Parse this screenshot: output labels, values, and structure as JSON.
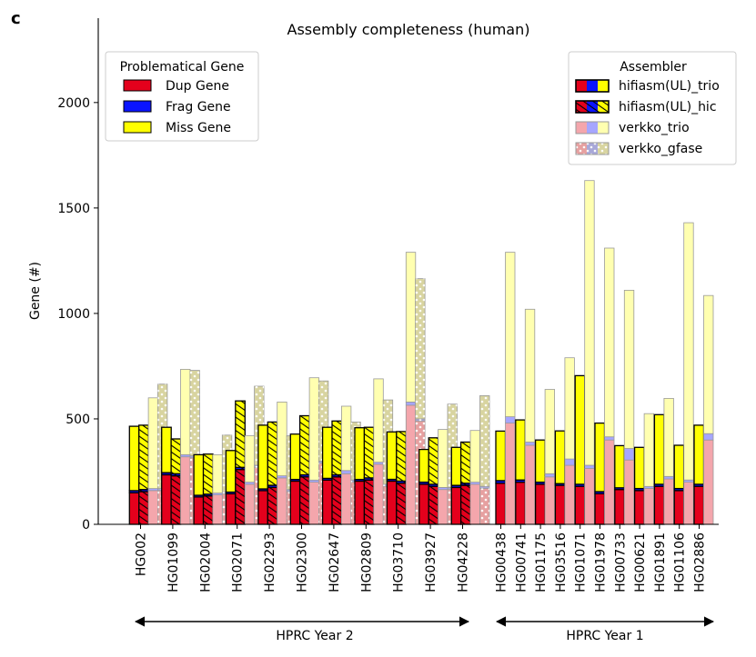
{
  "panel_label": "c",
  "chart_data": {
    "type": "stacked-bar",
    "title": "Assembly completeness (human)",
    "ylabel": "Gene (#)",
    "ylim": [
      0,
      2400
    ],
    "yticks": [
      0,
      500,
      1000,
      1500,
      2000
    ],
    "components": [
      "Dup Gene",
      "Frag Gene",
      "Miss Gene"
    ],
    "component_legend_title": "Problematical Gene",
    "assembler_legend_title": "Assembler",
    "assemblers": [
      "hifiasm(UL)_trio",
      "hifiasm(UL)_hic",
      "verkko_trio",
      "verkko_gfase"
    ],
    "groups": [
      {
        "label": "HPRC Year 2",
        "samples": [
          {
            "name": "HG002",
            "bars": [
              [
                150,
                10,
                305
              ],
              [
                155,
                10,
                305
              ],
              [
                160,
                10,
                430
              ],
              [
                160,
                10,
                495
              ]
            ]
          },
          {
            "name": "HG01099",
            "bars": [
              [
                235,
                10,
                215
              ],
              [
                230,
                10,
                165
              ],
              [
                320,
                10,
                405
              ],
              [
                315,
                10,
                405
              ]
            ]
          },
          {
            "name": "HG02004",
            "bars": [
              [
                130,
                8,
                192
              ],
              [
                135,
                8,
                190
              ],
              [
                140,
                8,
                182
              ],
              [
                145,
                8,
                270
              ]
            ]
          },
          {
            "name": "HG02071",
            "bars": [
              [
                145,
                8,
                197
              ],
              [
                260,
                10,
                315
              ],
              [
                190,
                10,
                220
              ],
              [
                270,
                10,
                375
              ]
            ]
          },
          {
            "name": "HG02293",
            "bars": [
              [
                160,
                8,
                302
              ],
              [
                175,
                10,
                300
              ],
              [
                220,
                10,
                350
              ],
              [
                155,
                10,
                255
              ]
            ]
          },
          {
            "name": "HG02300",
            "bars": [
              [
                205,
                8,
                215
              ],
              [
                225,
                10,
                280
              ],
              [
                200,
                10,
                485
              ],
              [
                290,
                10,
                380
              ]
            ]
          },
          {
            "name": "HG02647",
            "bars": [
              [
                210,
                8,
                242
              ],
              [
                225,
                10,
                255
              ],
              [
                240,
                15,
                305
              ],
              [
                200,
                10,
                275
              ]
            ]
          },
          {
            "name": "HG02809",
            "bars": [
              [
                205,
                8,
                245
              ],
              [
                210,
                10,
                240
              ],
              [
                285,
                10,
                395
              ],
              [
                180,
                10,
                400
              ]
            ]
          },
          {
            "name": "HG03710",
            "bars": [
              [
                205,
                8,
                225
              ],
              [
                195,
                10,
                235
              ],
              [
                565,
                15,
                710
              ],
              [
                490,
                10,
                665
              ]
            ]
          },
          {
            "name": "HG03927",
            "bars": [
              [
                190,
                10,
                155
              ],
              [
                180,
                10,
                220
              ],
              [
                165,
                10,
                275
              ],
              [
                165,
                10,
                395
              ]
            ]
          },
          {
            "name": "HG04228",
            "bars": [
              [
                175,
                10,
                180
              ],
              [
                185,
                10,
                195
              ],
              [
                190,
                10,
                245
              ],
              [
                170,
                10,
                430
              ]
            ]
          }
        ]
      },
      {
        "label": "HPRC Year 1",
        "samples": [
          {
            "name": "HG00438",
            "bars": [
              [
                195,
                12,
                235
              ],
              [
                480,
                30,
                780
              ]
            ]
          },
          {
            "name": "HG00741",
            "bars": [
              [
                200,
                10,
                285
              ],
              [
                375,
                15,
                630
              ]
            ]
          },
          {
            "name": "HG01175",
            "bars": [
              [
                190,
                10,
                200
              ],
              [
                225,
                15,
                400
              ]
            ]
          },
          {
            "name": "HG03516",
            "bars": [
              [
                185,
                8,
                250
              ],
              [
                280,
                30,
                480
              ]
            ]
          },
          {
            "name": "HG01071",
            "bars": [
              [
                180,
                10,
                515
              ],
              [
                265,
                15,
                1350
              ]
            ]
          },
          {
            "name": "HG01978",
            "bars": [
              [
                145,
                10,
                325
              ],
              [
                400,
                15,
                895
              ]
            ]
          },
          {
            "name": "HG00733",
            "bars": [
              [
                165,
                8,
                200
              ],
              [
                305,
                55,
                750
              ]
            ]
          },
          {
            "name": "HG00621",
            "bars": [
              [
                160,
                10,
                195
              ],
              [
                170,
                10,
                345
              ]
            ]
          },
          {
            "name": "HG01891",
            "bars": [
              [
                180,
                10,
                330
              ],
              [
                215,
                12,
                370
              ]
            ]
          },
          {
            "name": "HG01106",
            "bars": [
              [
                160,
                10,
                205
              ],
              [
                200,
                10,
                1220
              ]
            ]
          },
          {
            "name": "HG02886",
            "bars": [
              [
                180,
                10,
                280
              ],
              [
                400,
                30,
                655
              ]
            ]
          }
        ]
      }
    ]
  }
}
